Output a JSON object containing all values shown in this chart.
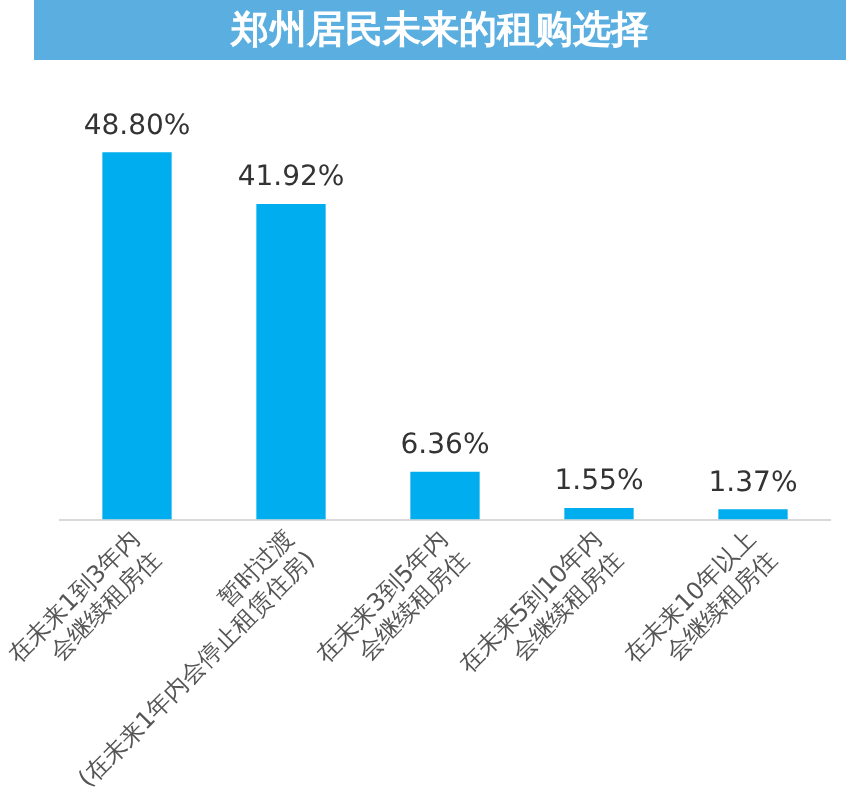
{
  "chart_data": {
    "type": "bar",
    "title": "郑州居民未来的租购选择",
    "categories": [
      "在未来1到3年内\n会继续租房住",
      "暂时过渡\n(在未来1年内会停止租赁住房)",
      "在未来3到5年内\n会继续租房住",
      "在未来5到10年内\n会继续租房住",
      "在未来10年以上\n会继续租房住"
    ],
    "values": [
      48.8,
      41.92,
      6.36,
      1.55,
      1.37
    ],
    "value_labels": [
      "48.80%",
      "41.92%",
      "6.36%",
      "1.55%",
      "1.37%"
    ],
    "color": "#00aeef",
    "grid": false,
    "legend": false
  }
}
